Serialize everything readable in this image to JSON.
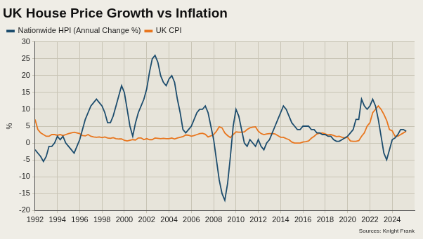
{
  "chart_data": {
    "type": "line",
    "title": "UK House Price Growth vs Inflation",
    "y_label": "%",
    "source": "Sources: Knight Frank",
    "x": [
      1992,
      1992.25,
      1992.5,
      1992.75,
      1993,
      1993.25,
      1993.5,
      1993.75,
      1994,
      1994.25,
      1994.5,
      1994.75,
      1995,
      1995.25,
      1995.5,
      1995.75,
      1996,
      1996.25,
      1996.5,
      1996.75,
      1997,
      1997.25,
      1997.5,
      1997.75,
      1998,
      1998.25,
      1998.5,
      1998.75,
      1999,
      1999.25,
      1999.5,
      1999.75,
      2000,
      2000.25,
      2000.5,
      2000.75,
      2001,
      2001.25,
      2001.5,
      2001.75,
      2002,
      2002.25,
      2002.5,
      2002.75,
      2003,
      2003.25,
      2003.5,
      2003.75,
      2004,
      2004.25,
      2004.5,
      2004.75,
      2005,
      2005.25,
      2005.5,
      2005.75,
      2006,
      2006.25,
      2006.5,
      2006.75,
      2007,
      2007.25,
      2007.5,
      2007.75,
      2008,
      2008.25,
      2008.5,
      2008.75,
      2009,
      2009.25,
      2009.5,
      2009.75,
      2010,
      2010.25,
      2010.5,
      2010.75,
      2011,
      2011.25,
      2011.5,
      2011.75,
      2012,
      2012.25,
      2012.5,
      2012.75,
      2013,
      2013.25,
      2013.5,
      2013.75,
      2014,
      2014.25,
      2014.5,
      2014.75,
      2015,
      2015.25,
      2015.5,
      2015.75,
      2016,
      2016.25,
      2016.5,
      2016.75,
      2017,
      2017.25,
      2017.5,
      2017.75,
      2018,
      2018.25,
      2018.5,
      2018.75,
      2019,
      2019.25,
      2019.5,
      2019.75,
      2020,
      2020.25,
      2020.5,
      2020.75,
      2021,
      2021.25,
      2021.5,
      2021.75,
      2022,
      2022.25,
      2022.5,
      2022.75,
      2023,
      2023.25,
      2023.5,
      2023.75,
      2024,
      2024.25,
      2024.5,
      2024.75,
      2025,
      2025.25
    ],
    "series": [
      {
        "name": "Nationwide HPI (Annual Change %)",
        "color": "#1d4d6e",
        "marker": "none",
        "line_style": "solid",
        "values": [
          -2,
          -3,
          -4,
          -5.5,
          -4,
          -1,
          -1,
          0,
          2,
          1,
          2,
          0,
          -1,
          -2,
          -3,
          -1,
          1,
          4,
          7,
          9,
          11,
          12,
          13,
          12,
          11,
          9,
          6,
          6,
          8,
          11,
          14,
          17,
          15,
          10,
          5,
          2,
          6,
          9,
          11,
          13,
          16,
          21,
          25,
          26,
          24,
          20,
          18,
          17,
          19,
          20,
          18,
          13,
          9,
          4,
          3,
          4,
          5,
          7,
          9,
          10,
          10,
          11,
          9,
          5,
          1,
          -5,
          -11,
          -15,
          -17,
          -12,
          -4,
          5,
          10,
          8,
          4,
          0,
          -1,
          1,
          0,
          -1,
          1,
          -1,
          -2,
          0,
          1,
          3,
          5,
          7,
          9,
          11,
          10,
          8,
          6,
          5,
          4,
          4,
          5,
          5,
          5,
          4,
          4,
          3,
          3,
          2.5,
          2.5,
          2,
          2,
          1,
          0.5,
          0.5,
          1,
          1.5,
          2,
          3,
          4,
          7,
          7,
          13,
          11,
          10,
          11,
          13,
          11,
          7,
          2,
          -3,
          -5,
          -2,
          1,
          1.5,
          2.5,
          4,
          4,
          3.5
        ]
      },
      {
        "name": "UK CPI",
        "color": "#e8761e",
        "marker": "none",
        "line_style": "solid",
        "values": [
          7,
          4,
          3,
          2.5,
          2,
          2,
          2.5,
          2.5,
          2.3,
          2.5,
          2.2,
          2.5,
          2.8,
          3,
          3.2,
          3,
          2.8,
          2.2,
          2.1,
          2.5,
          2,
          1.8,
          1.7,
          1.8,
          1.6,
          1.8,
          1.5,
          1.4,
          1.6,
          1.3,
          1.2,
          1.2,
          0.8,
          0.6,
          0.8,
          1,
          0.9,
          1.5,
          1.5,
          1,
          1.3,
          1,
          1,
          1.5,
          1.4,
          1.3,
          1.4,
          1.3,
          1.3,
          1.5,
          1.2,
          1.5,
          1.7,
          1.9,
          2.4,
          2.3,
          2,
          2.2,
          2.5,
          2.8,
          2.9,
          2.6,
          1.8,
          2.1,
          2.5,
          3.5,
          4.8,
          4.5,
          3,
          2.2,
          1.6,
          2.5,
          3.3,
          3.2,
          3.2,
          3.3,
          4,
          4.5,
          4.7,
          4.8,
          3.5,
          2.8,
          2.5,
          2.7,
          2.8,
          2.8,
          2.7,
          2.2,
          1.7,
          1.7,
          1.3,
          1,
          0.3,
          0,
          0,
          0,
          0.3,
          0.4,
          0.6,
          1.4,
          2,
          2.7,
          2.9,
          3,
          2.7,
          2.4,
          2.5,
          2.2,
          1.9,
          2,
          1.7,
          1.5,
          1.7,
          0.6,
          0.5,
          0.5,
          0.7,
          2,
          3,
          5,
          6,
          9,
          10,
          11,
          10,
          8.5,
          6.7,
          4,
          3.6,
          2,
          2,
          2.5,
          3,
          3.5
        ]
      }
    ],
    "xlim": [
      1992,
      2026
    ],
    "xticks": [
      1992,
      1994,
      1996,
      1998,
      2000,
      2002,
      2004,
      2006,
      2008,
      2010,
      2012,
      2014,
      2016,
      2018,
      2020,
      2022,
      2024
    ],
    "ylim": [
      -20,
      30
    ],
    "yticks": [
      -20,
      -15,
      -10,
      -5,
      0,
      5,
      10,
      15,
      20,
      25,
      30
    ],
    "grid": true,
    "legend": "top-left"
  }
}
